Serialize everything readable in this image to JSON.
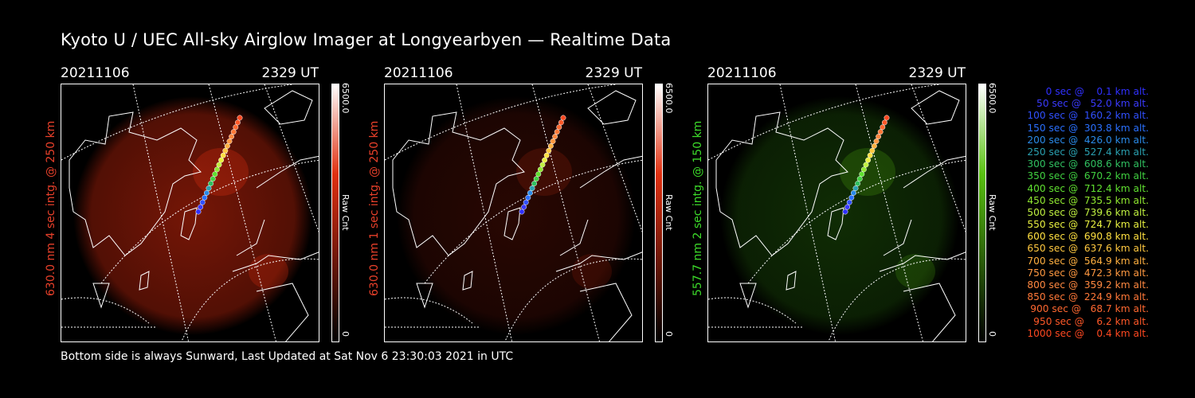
{
  "title": "Kyoto U / UEC All-sky Airglow Imager at Longyearbyen — Realtime Data",
  "panels": [
    {
      "date": "20211106",
      "time": "2329 UT",
      "ylabel": "630.0 nm 4 sec intg. @ 250 km",
      "label_color": "#e8402a",
      "cbar_max": "6500.0",
      "cbar_unit": "Raw Cnt",
      "cbar_min": "0",
      "cbar_color": "#e03010",
      "glow_color": "#8a1a08",
      "glow_level": 0.85
    },
    {
      "date": "20211106",
      "time": "2329 UT",
      "ylabel": "630.0 nm 1 sec intg. @ 250 km",
      "label_color": "#e8402a",
      "cbar_max": "6500.0",
      "cbar_unit": "Raw Cnt",
      "cbar_min": "0",
      "cbar_color": "#e03010",
      "glow_color": "#5a1006",
      "glow_level": 0.45
    },
    {
      "date": "20211106",
      "time": "2329 UT",
      "ylabel": "557.7 nm 2 sec intg. @ 150 km",
      "label_color": "#3ddc2a",
      "cbar_max": "6500.0",
      "cbar_unit": "Raw Cnt",
      "cbar_min": "0",
      "cbar_color": "#58c010",
      "glow_color": "#1a4a08",
      "glow_level": 0.6
    }
  ],
  "legend": [
    {
      "text": "   0 sec @    0.1 km alt.",
      "color": "#3030ff"
    },
    {
      "text": "  50 sec @   52.0 km alt.",
      "color": "#3a3aff"
    },
    {
      "text": " 100 sec @  160.2 km alt.",
      "color": "#3050ff"
    },
    {
      "text": " 150 sec @  303.8 km alt.",
      "color": "#2a70ff"
    },
    {
      "text": " 200 sec @  426.0 km alt.",
      "color": "#2a8ae8"
    },
    {
      "text": " 250 sec @  527.4 km alt.",
      "color": "#2aa0b0"
    },
    {
      "text": " 300 sec @  608.6 km alt.",
      "color": "#30c060"
    },
    {
      "text": " 350 sec @  670.2 km alt.",
      "color": "#40d040"
    },
    {
      "text": " 400 sec @  712.4 km alt.",
      "color": "#60e030"
    },
    {
      "text": " 450 sec @  735.5 km alt.",
      "color": "#90e830"
    },
    {
      "text": " 500 sec @  739.6 km alt.",
      "color": "#c0f040"
    },
    {
      "text": " 550 sec @  724.7 km alt.",
      "color": "#e8f040"
    },
    {
      "text": " 600 sec @  690.8 km alt.",
      "color": "#ffe040"
    },
    {
      "text": " 650 sec @  637.6 km alt.",
      "color": "#ffc840"
    },
    {
      "text": " 700 sec @  564.9 km alt.",
      "color": "#ffb040"
    },
    {
      "text": " 750 sec @  472.3 km alt.",
      "color": "#ff9840"
    },
    {
      "text": " 800 sec @  359.2 km alt.",
      "color": "#ff8840"
    },
    {
      "text": " 850 sec @  224.9 km alt.",
      "color": "#ff7838"
    },
    {
      "text": " 900 sec @   68.7 km alt.",
      "color": "#ff6830"
    },
    {
      "text": " 950 sec @    6.2 km alt.",
      "color": "#ff5828"
    },
    {
      "text": "1000 sec @    0.4 km alt.",
      "color": "#ff4820"
    }
  ],
  "footer": "Bottom side is always Sunward, Last Updated at Sat Nov  6 23:30:03 2021 in UTC"
}
